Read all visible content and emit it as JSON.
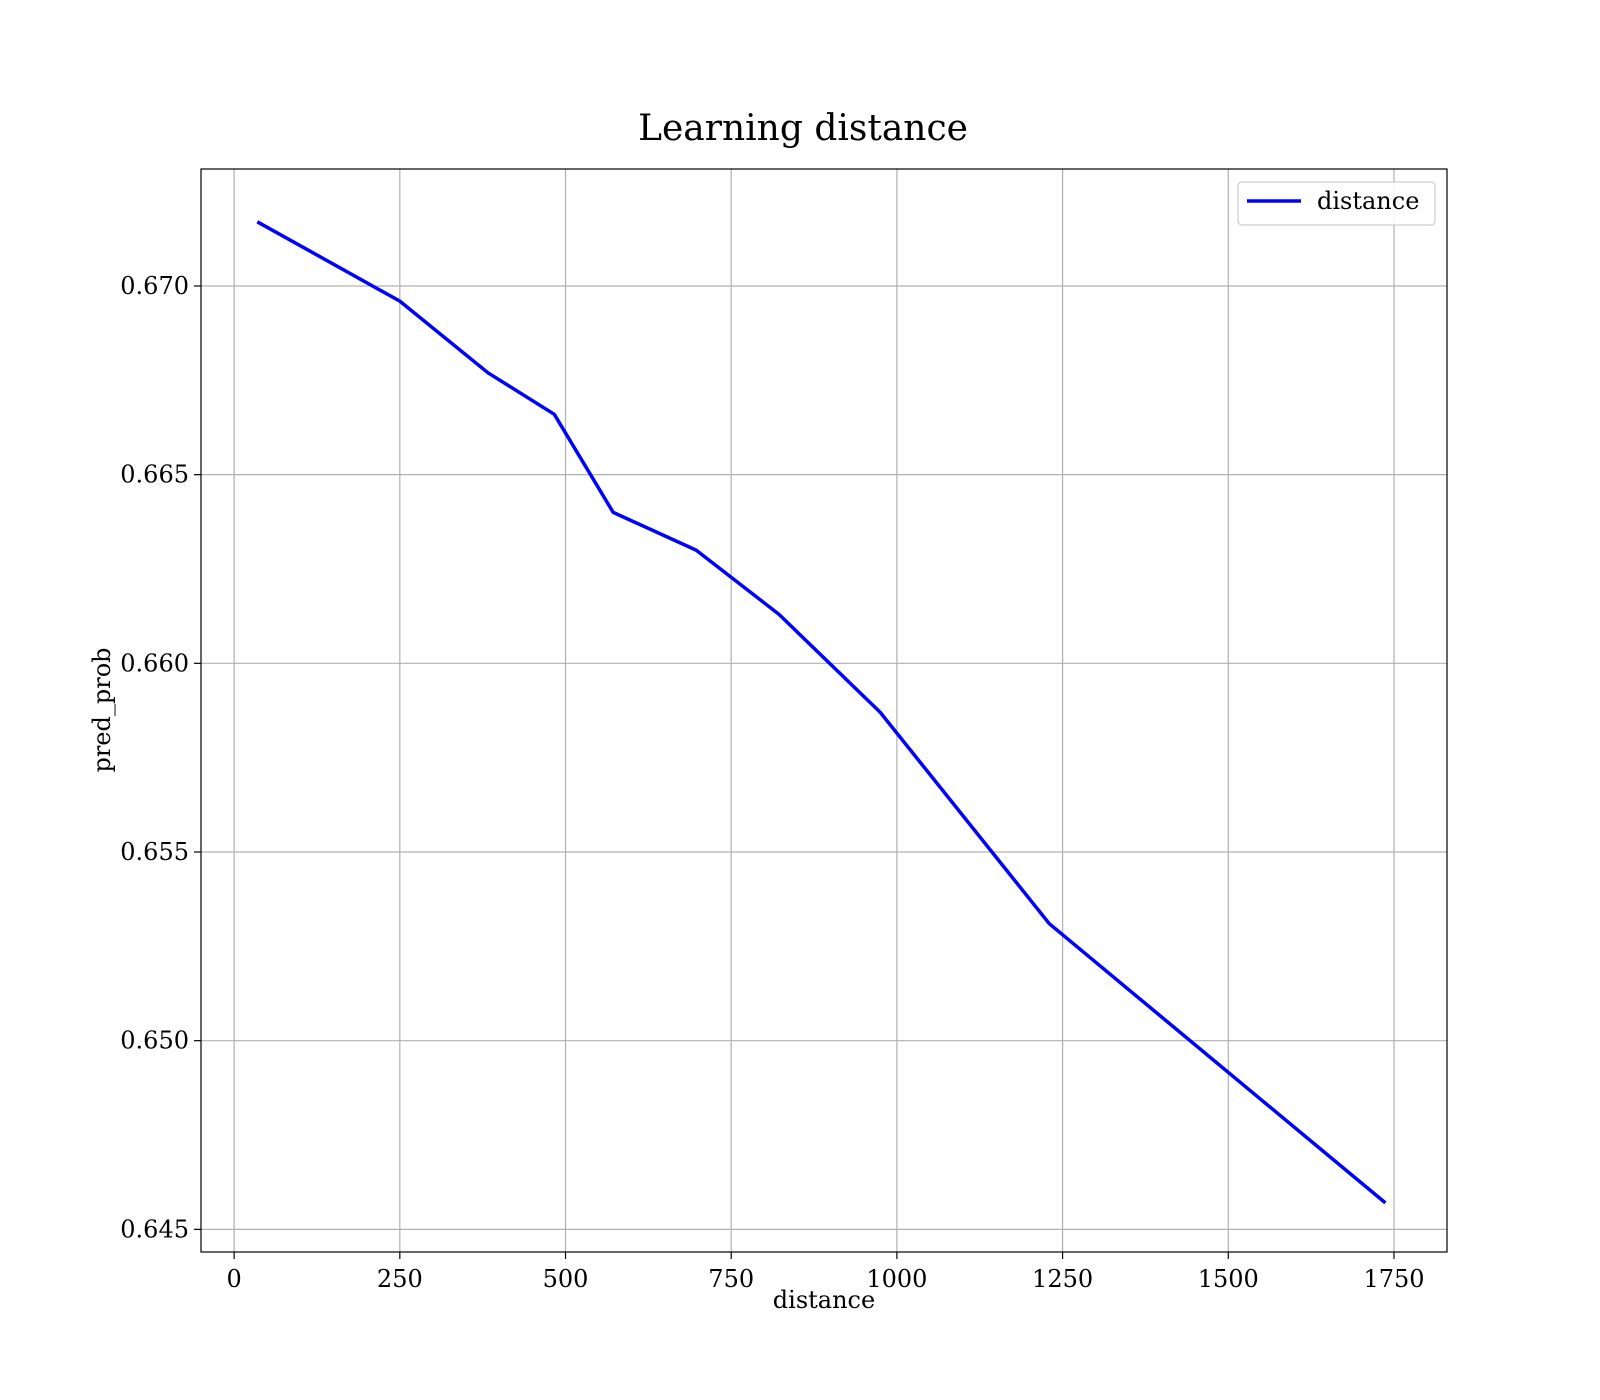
{
  "chart_data": {
    "type": "line",
    "title": "Learning distance",
    "xlabel": "distance",
    "ylabel": "pred_prob",
    "xlim": [
      -50,
      1830
    ],
    "ylim": [
      0.6444,
      0.6731
    ],
    "x_ticks": [
      0,
      250,
      500,
      750,
      1000,
      1250,
      1500,
      1750
    ],
    "x_tick_labels": [
      "0",
      "250",
      "500",
      "750",
      "1000",
      "1250",
      "1500",
      "1750"
    ],
    "y_ticks": [
      0.645,
      0.65,
      0.655,
      0.66,
      0.665,
      0.67
    ],
    "y_tick_labels": [
      "0.645",
      "0.650",
      "0.655",
      "0.660",
      "0.665",
      "0.670"
    ],
    "grid": true,
    "legend_position": "top-right",
    "series": [
      {
        "name": "distance",
        "color": "#0000ff",
        "x": [
          35,
          250,
          383,
          483,
          572,
          697,
          822,
          975,
          1230,
          1737
        ],
        "y": [
          0.6717,
          0.6696,
          0.6677,
          0.6666,
          0.664,
          0.663,
          0.6613,
          0.6587,
          0.6531,
          0.6457
        ]
      }
    ]
  }
}
